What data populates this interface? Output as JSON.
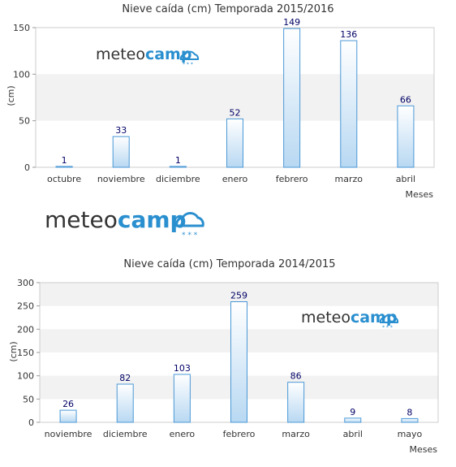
{
  "logos": {
    "brand_light": "meteo",
    "brand_bold": "camp",
    "brand_color": "#2a8fcf",
    "text_color": "#333333"
  },
  "colors": {
    "bar_top": "#ffffff",
    "bar_bottom": "#b8d8f2",
    "bar_stroke": "#4a98d6",
    "band": "#f2f2f2",
    "value_label": "#000066"
  },
  "chart_data": [
    {
      "type": "bar",
      "title": "Nieve caída (cm) Temporada 2015/2016",
      "xlabel": "Meses",
      "ylabel": "(cm)",
      "ylim": [
        0,
        150
      ],
      "yticks": [
        0,
        50,
        100,
        150
      ],
      "grid": true,
      "categories": [
        "octubre",
        "noviembre",
        "diciembre",
        "enero",
        "febrero",
        "marzo",
        "abril"
      ],
      "values": [
        1,
        33,
        1,
        52,
        149,
        136,
        66
      ]
    },
    {
      "type": "bar",
      "title": "Nieve caída (cm) Temporada 2014/2015",
      "xlabel": "Meses",
      "ylabel": "(cm)",
      "ylim": [
        0,
        300
      ],
      "yticks": [
        0,
        50,
        100,
        150,
        200,
        250,
        300
      ],
      "grid": true,
      "categories": [
        "noviembre",
        "diciembre",
        "enero",
        "febrero",
        "marzo",
        "abril",
        "mayo"
      ],
      "values": [
        26,
        82,
        103,
        259,
        86,
        9,
        8
      ]
    }
  ]
}
